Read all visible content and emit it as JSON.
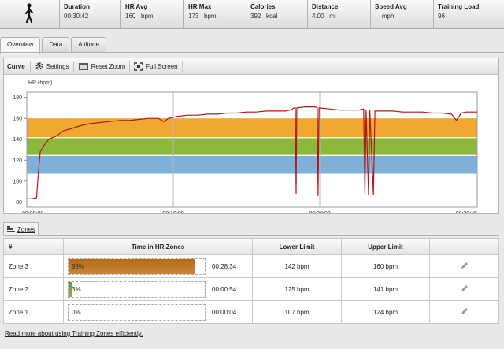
{
  "stats": [
    {
      "label": "Duration",
      "value": "00:30:42"
    },
    {
      "label": "HR Avg",
      "value": "160   bpm"
    },
    {
      "label": "HR Max",
      "value": "173   bpm"
    },
    {
      "label": "Calories",
      "value": "392   kcal"
    },
    {
      "label": "Distance",
      "value": "4.00   mi"
    },
    {
      "label": "Speed Avg",
      "value": "    mph"
    },
    {
      "label": "Training Load",
      "value": "96"
    }
  ],
  "tabs": [
    "Overview",
    "Data",
    "Altitude"
  ],
  "toolbar": {
    "title": "Curve",
    "settings": "Settings",
    "reset_zoom": "Reset Zoom",
    "full_screen": "Full Screen"
  },
  "chart_data": {
    "type": "line",
    "ylabel": "HR (bpm)",
    "xlim": [
      0,
      1845
    ],
    "ylim": [
      75,
      185
    ],
    "yticks": [
      80,
      100,
      120,
      140,
      160,
      180
    ],
    "xticks": [
      {
        "t": 0,
        "label": "00:00:00"
      },
      {
        "t": 600,
        "label": "00:10:00"
      },
      {
        "t": 1200,
        "label": "00:20:00"
      },
      {
        "t": 1845,
        "label": "00:30:45"
      }
    ],
    "zones": [
      {
        "from": 142,
        "to": 160,
        "color": "#f0a830"
      },
      {
        "from": 125,
        "to": 141,
        "color": "#8cb83c"
      },
      {
        "from": 107,
        "to": 124,
        "color": "#7eb0d8"
      }
    ],
    "series": [
      {
        "color": "#b01818",
        "points": [
          [
            0,
            83
          ],
          [
            18,
            83
          ],
          [
            40,
            84
          ],
          [
            48,
            110
          ],
          [
            55,
            128
          ],
          [
            70,
            134
          ],
          [
            90,
            140
          ],
          [
            120,
            143
          ],
          [
            150,
            148
          ],
          [
            180,
            150
          ],
          [
            220,
            153
          ],
          [
            260,
            155
          ],
          [
            300,
            156
          ],
          [
            340,
            157
          ],
          [
            380,
            158
          ],
          [
            420,
            158
          ],
          [
            460,
            159
          ],
          [
            500,
            160
          ],
          [
            540,
            160
          ],
          [
            560,
            157
          ],
          [
            580,
            160
          ],
          [
            620,
            162
          ],
          [
            660,
            163
          ],
          [
            700,
            163
          ],
          [
            740,
            164
          ],
          [
            780,
            164
          ],
          [
            820,
            165
          ],
          [
            860,
            165
          ],
          [
            900,
            166
          ],
          [
            940,
            166
          ],
          [
            980,
            167
          ],
          [
            1020,
            167
          ],
          [
            1060,
            167
          ],
          [
            1080,
            168
          ],
          [
            1095,
            170
          ],
          [
            1100,
            170
          ],
          [
            1103,
            88
          ],
          [
            1106,
            170
          ],
          [
            1140,
            171
          ],
          [
            1180,
            171
          ],
          [
            1190,
            170
          ],
          [
            1193,
            86
          ],
          [
            1197,
            170
          ],
          [
            1240,
            169
          ],
          [
            1280,
            168
          ],
          [
            1320,
            168
          ],
          [
            1360,
            168
          ],
          [
            1380,
            169
          ],
          [
            1385,
            88
          ],
          [
            1390,
            168
          ],
          [
            1400,
            87
          ],
          [
            1405,
            168
          ],
          [
            1420,
            87
          ],
          [
            1426,
            167
          ],
          [
            1460,
            167
          ],
          [
            1500,
            167
          ],
          [
            1540,
            166
          ],
          [
            1580,
            166
          ],
          [
            1620,
            166
          ],
          [
            1660,
            165
          ],
          [
            1700,
            165
          ],
          [
            1740,
            164
          ],
          [
            1760,
            158
          ],
          [
            1780,
            165
          ],
          [
            1800,
            166
          ],
          [
            1845,
            166
          ]
        ]
      }
    ]
  },
  "zones_panel": {
    "tab_label": "Zones",
    "headers": [
      "#",
      "Time in HR Zones",
      "Lower Limit",
      "Upper Limit"
    ],
    "rows": [
      {
        "name": "Zone 3",
        "fraction": 0.93,
        "pct": "93%",
        "time": "00:28:34",
        "lower": "142 bpm",
        "upper": "160 bpm",
        "color": "#b86a10"
      },
      {
        "name": "Zone 2",
        "fraction": 0.03,
        "pct": "3%",
        "time": "00:00:54",
        "lower": "125 bpm",
        "upper": "141 bpm",
        "color": "#6a9c2a"
      },
      {
        "name": "Zone 1",
        "fraction": 0.0,
        "pct": "0%",
        "time": "00:00:04",
        "lower": "107 bpm",
        "upper": "124 bpm",
        "color": "#5a8cc0"
      }
    ],
    "footer_link": "Read more about using Training Zones efficiently."
  }
}
